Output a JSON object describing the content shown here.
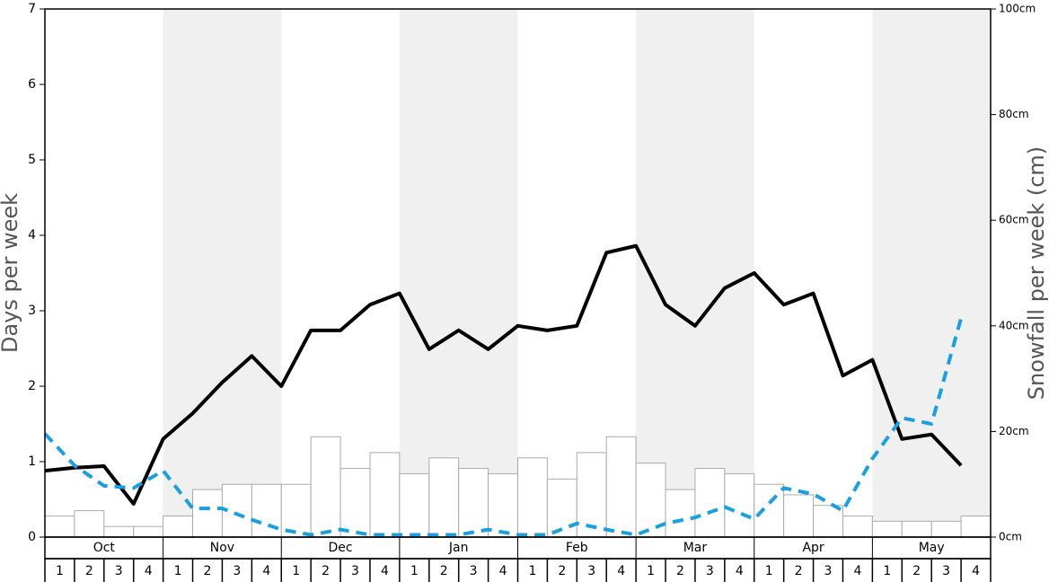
{
  "chart_data": {
    "type": "bar",
    "months": [
      "Oct",
      "Nov",
      "Dec",
      "Jan",
      "Feb",
      "Mar",
      "Apr",
      "May"
    ],
    "categories": [
      "1",
      "2",
      "3",
      "4",
      "1",
      "2",
      "3",
      "4",
      "1",
      "2",
      "3",
      "4",
      "1",
      "2",
      "3",
      "4",
      "1",
      "2",
      "3",
      "4",
      "1",
      "2",
      "3",
      "4",
      "1",
      "2",
      "3",
      "4",
      "1",
      "2",
      "3",
      "4"
    ],
    "y_label": "Days per week",
    "y2_label": "Snowfall per week (cm)",
    "ylim": [
      0,
      7
    ],
    "yticks": [
      0,
      1,
      2,
      3,
      4,
      5,
      6,
      7
    ],
    "y2lim": [
      0,
      100
    ],
    "y2ticks": [
      {
        "value": 0,
        "label": "0cm"
      },
      {
        "value": 20,
        "label": "20cm"
      },
      {
        "value": 40,
        "label": "40cm"
      },
      {
        "value": 60,
        "label": "60cm"
      },
      {
        "value": 80,
        "label": "80cm"
      },
      {
        "value": 100,
        "label": "100cm"
      }
    ],
    "series": [
      {
        "type": "bar",
        "axis": "y2",
        "color": "#ffffff",
        "values": [
          4,
          5,
          2,
          2,
          4,
          9,
          10,
          10,
          10,
          19,
          13,
          16,
          12,
          15,
          13,
          12,
          15,
          11,
          16,
          19,
          14,
          9,
          13,
          12,
          10,
          8,
          6,
          4,
          3,
          3,
          3,
          4
        ]
      },
      {
        "type": "line",
        "color": "#000000",
        "dashed": false,
        "values": [
          0.88,
          0.92,
          0.94,
          0.44,
          1.3,
          1.64,
          2.05,
          2.4,
          2.0,
          2.74,
          2.74,
          3.08,
          3.23,
          2.49,
          2.74,
          2.49,
          2.8,
          2.74,
          2.8,
          3.77,
          3.86,
          3.08,
          2.8,
          3.3,
          3.5,
          3.08,
          3.23,
          2.14,
          2.35,
          1.3,
          1.36,
          0.95
        ]
      },
      {
        "type": "line",
        "color": "#1a9fe0",
        "dashed": true,
        "values": [
          1.37,
          0.95,
          0.68,
          0.65,
          0.88,
          0.38,
          0.38,
          0.23,
          0.1,
          0.03,
          0.1,
          0.03,
          0.03,
          0.03,
          0.03,
          0.1,
          0.03,
          0.03,
          0.18,
          0.1,
          0.03,
          0.18,
          0.26,
          0.4,
          0.24,
          0.65,
          0.57,
          0.35,
          1.04,
          1.58,
          1.5,
          2.9
        ]
      }
    ]
  }
}
